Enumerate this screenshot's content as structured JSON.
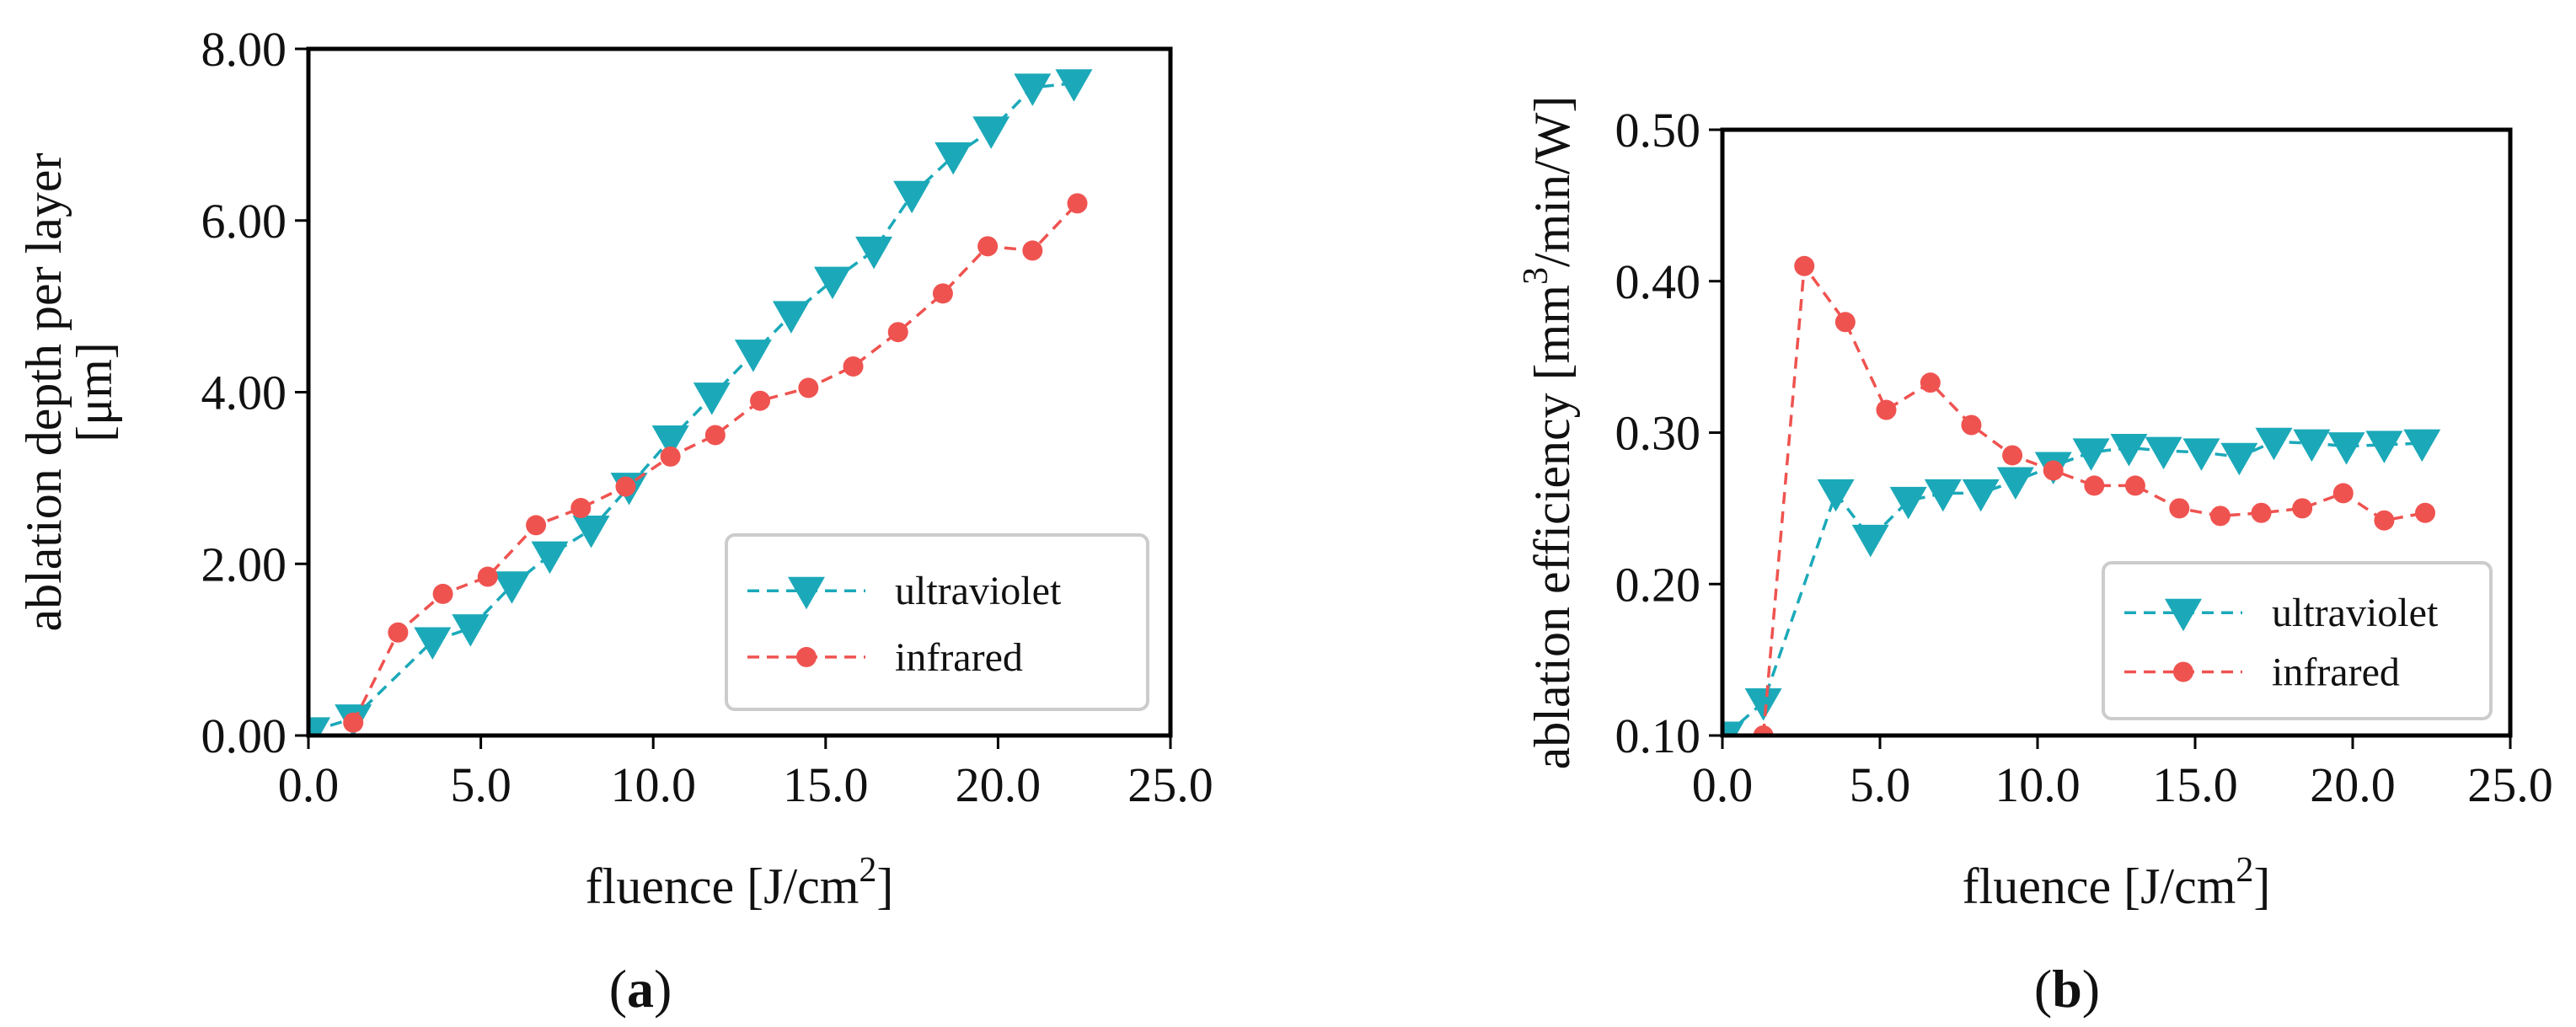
{
  "colors": {
    "ultraviolet": "#1ba9b9",
    "infrared": "#ef5350",
    "axis": "#000000",
    "legend_border": "#cccccc"
  },
  "chart_data": [
    {
      "type": "line",
      "panel_label": "(a)",
      "panel_letter": "a",
      "xlabel": "fluence [J/cm",
      "xlabel_sup": "2",
      "xlabel_end": "]",
      "ylabel": "ablation depth per layer",
      "ylabel2": "[μm]",
      "xlim": [
        0,
        25
      ],
      "ylim": [
        0,
        8
      ],
      "xticks": [
        0,
        5,
        10,
        15,
        20,
        25
      ],
      "xtick_labels": [
        "0.0",
        "5.0",
        "10.0",
        "15.0",
        "20.0",
        "25.0"
      ],
      "yticks": [
        0,
        2,
        4,
        6,
        8
      ],
      "ytick_labels": [
        "0.00",
        "2.00",
        "4.00",
        "6.00",
        "8.00"
      ],
      "legend": {
        "position": "lower-right",
        "entries": [
          "ultraviolet",
          "infrared"
        ]
      },
      "series": [
        {
          "name": "ultraviolet",
          "marker": "triangle-down",
          "x": [
            0.1,
            1.3,
            3.6,
            4.7,
            5.9,
            7.0,
            8.2,
            9.3,
            10.5,
            11.7,
            12.9,
            14.0,
            15.2,
            16.4,
            17.5,
            18.7,
            19.8,
            21.0,
            22.2
          ],
          "y": [
            0.05,
            0.2,
            1.1,
            1.25,
            1.75,
            2.1,
            2.4,
            2.9,
            3.45,
            3.95,
            4.45,
            4.9,
            5.3,
            5.65,
            6.3,
            6.75,
            7.05,
            7.55,
            7.6
          ]
        },
        {
          "name": "infrared",
          "marker": "circle",
          "x": [
            1.3,
            2.6,
            3.9,
            5.2,
            6.6,
            7.9,
            9.2,
            10.5,
            11.8,
            13.1,
            14.5,
            15.8,
            17.1,
            18.4,
            19.7,
            21.0,
            22.3
          ],
          "y": [
            0.15,
            1.2,
            1.65,
            1.85,
            2.45,
            2.65,
            2.9,
            3.25,
            3.5,
            3.9,
            4.05,
            4.3,
            4.7,
            5.15,
            5.7,
            5.65,
            6.2
          ]
        }
      ]
    },
    {
      "type": "line",
      "panel_label": "(b)",
      "panel_letter": "b",
      "xlabel": "fluence [J/cm",
      "xlabel_sup": "2",
      "xlabel_end": "]",
      "ylabel": "ablation efficiency [mm",
      "ylabel_sup": "3",
      "ylabel_end": "/min/W]",
      "xlim": [
        0,
        25
      ],
      "ylim": [
        0.1,
        0.5
      ],
      "xticks": [
        0,
        5,
        10,
        15,
        20,
        25
      ],
      "xtick_labels": [
        "0.0",
        "5.0",
        "10.0",
        "15.0",
        "20.0",
        "25.0"
      ],
      "yticks": [
        0.1,
        0.2,
        0.3,
        0.4,
        0.5
      ],
      "ytick_labels": [
        "0.10",
        "0.20",
        "0.30",
        "0.40",
        "0.50"
      ],
      "legend": {
        "position": "lower-right",
        "entries": [
          "ultraviolet",
          "infrared"
        ]
      },
      "series": [
        {
          "name": "ultraviolet",
          "marker": "triangle-down",
          "x": [
            0.1,
            1.3,
            3.6,
            4.7,
            5.9,
            7.0,
            8.2,
            9.3,
            10.5,
            11.7,
            12.9,
            14.0,
            15.2,
            16.4,
            17.5,
            18.7,
            19.8,
            21.0,
            22.2
          ],
          "y": [
            0.1,
            0.122,
            0.26,
            0.23,
            0.255,
            0.26,
            0.26,
            0.268,
            0.278,
            0.287,
            0.29,
            0.288,
            0.287,
            0.284,
            0.294,
            0.293,
            0.291,
            0.292,
            0.293
          ]
        },
        {
          "name": "infrared",
          "marker": "circle",
          "x": [
            1.3,
            2.6,
            3.9,
            5.2,
            6.6,
            7.9,
            9.2,
            10.5,
            11.8,
            13.1,
            14.5,
            15.8,
            17.1,
            18.4,
            19.7,
            21.0,
            22.3
          ],
          "y": [
            0.1,
            0.41,
            0.373,
            0.315,
            0.333,
            0.305,
            0.285,
            0.275,
            0.265,
            0.265,
            0.25,
            0.245,
            0.247,
            0.25,
            0.26,
            0.242,
            0.247
          ]
        }
      ]
    }
  ]
}
